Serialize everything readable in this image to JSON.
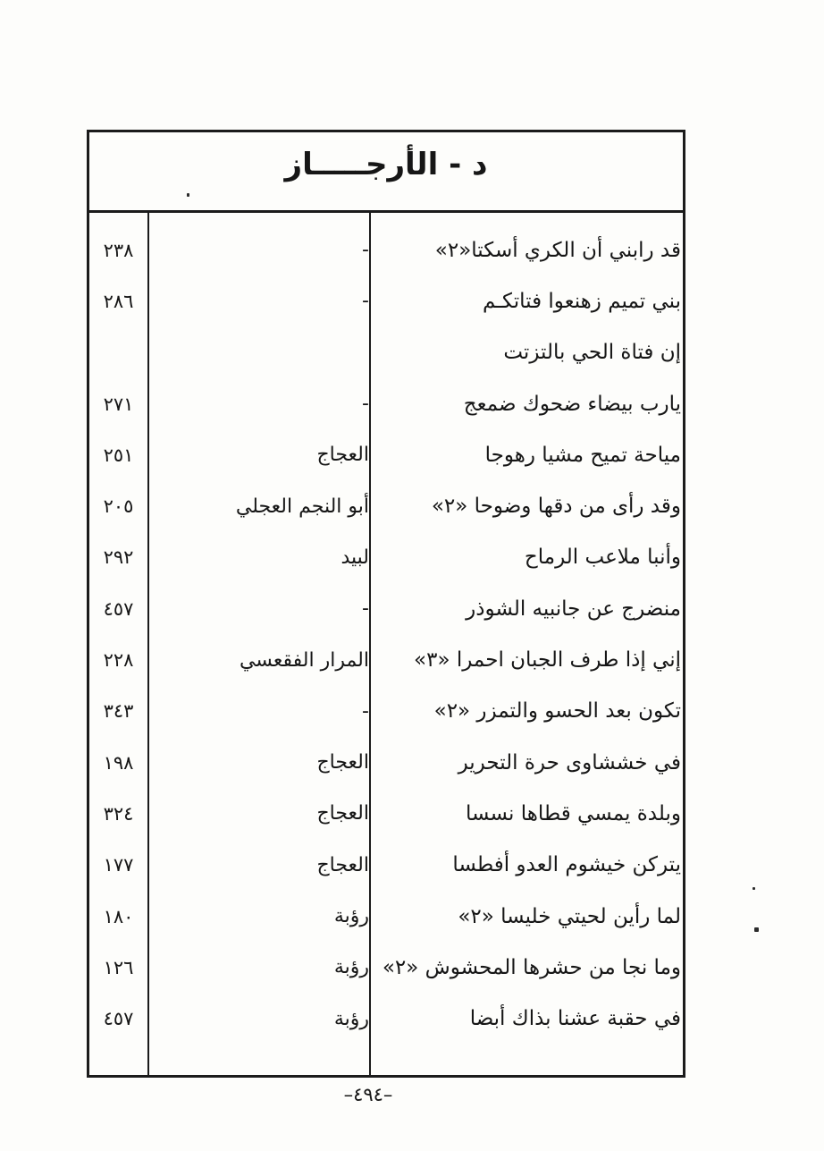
{
  "header": {
    "title": "د - الأرجـــــاز"
  },
  "footer": {
    "page_number": "–٤٩٤–"
  },
  "index_table": {
    "column_semantics": [
      "verse_first_line",
      "poet",
      "page_number"
    ],
    "rows": [
      {
        "verse": "قد رابني أن الكري أسكتا«٢»",
        "author": "-",
        "page": "٢٣٨"
      },
      {
        "verse": "بني تميم زهنعوا فتاتكـم",
        "author": "-",
        "page": "٢٨٦"
      },
      {
        "verse": "إن فتاة الحي بالتزتت",
        "author": "",
        "page": ""
      },
      {
        "verse": "يارب بيضاء ضحوك ضمعج",
        "author": "-",
        "page": "٢٧١"
      },
      {
        "verse": "مياحة تميح مشيا رهوجا",
        "author": "العجاج",
        "page": "٢٥١"
      },
      {
        "verse": "وقد رأى من دقها وضوحا «٢»",
        "author": "أبو النجم العجلي",
        "page": "٢٠٥"
      },
      {
        "verse": "وأنبا ملاعب الرماح",
        "author": "لبيد",
        "page": "٢٩٢"
      },
      {
        "verse": "منضرج عن جانبيه الشوذر",
        "author": "-",
        "page": "٤٥٧"
      },
      {
        "verse": "إني إذا طرف الجبان احمرا «٣»",
        "author": "المرار الفقعسي",
        "page": "٢٢٨"
      },
      {
        "verse": "تكون بعد الحسو والتمزر «٢»",
        "author": "-",
        "page": "٣٤٣"
      },
      {
        "verse": "في خششاوى حرة التحرير",
        "author": "العجاج",
        "page": "١٩٨"
      },
      {
        "verse": "وبلدة يمسي قطاها نسسا",
        "author": "العجاج",
        "page": "٣٢٤"
      },
      {
        "verse": "يتركن خيشوم العدو أفطسا",
        "author": "العجاج",
        "page": "١٧٧"
      },
      {
        "verse": "لما رأين لحيتي خليسا «٢»",
        "author": "رؤبة",
        "page": "١٨٠"
      },
      {
        "verse": "وما نجا من حشرها المحشوش «٢»",
        "author": "رؤبة",
        "page": "١٢٦"
      },
      {
        "verse": "في حقبة عشنا بذاك أبضا",
        "author": "رؤبة",
        "page": "٤٥٧"
      }
    ]
  },
  "colors": {
    "ink": "#1b1b1b",
    "paper": "#fdfdfb"
  }
}
